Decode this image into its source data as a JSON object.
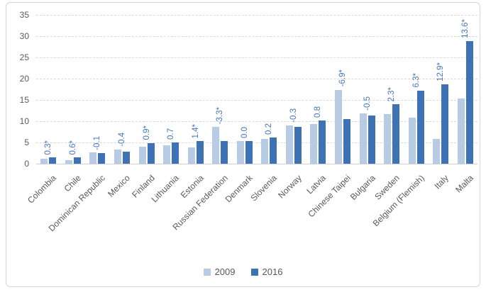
{
  "chart_data": {
    "type": "bar",
    "title": "",
    "xlabel": "",
    "ylabel": "",
    "ylim": [
      0,
      35
    ],
    "yticks": [
      0,
      5,
      10,
      15,
      20,
      25,
      30,
      35
    ],
    "grid": "horizontal-dashed",
    "legend_position": "bottom",
    "categories": [
      "Colombia",
      "Chile",
      "Dominican Republic",
      "Mexico",
      "Finland",
      "Lithuania",
      "Estonia",
      "Russian Federation",
      "Denmark",
      "Slovenia",
      "Norway",
      "Latvia",
      "Chinese Taipei",
      "Bulgaria",
      "Sweden",
      "Belgium (Flemish)",
      "Italy",
      "Malta"
    ],
    "series": [
      {
        "name": "2009",
        "color": "#b7cbe5",
        "values": [
          1.2,
          0.9,
          2.6,
          3.3,
          4.0,
          4.3,
          3.9,
          8.6,
          5.4,
          5.9,
          9.0,
          9.4,
          17.4,
          11.9,
          11.7,
          10.9,
          5.8,
          15.3
        ]
      },
      {
        "name": "2016",
        "color": "#3d72b4",
        "values": [
          1.5,
          1.5,
          2.5,
          2.9,
          4.9,
          5.0,
          5.3,
          5.3,
          5.4,
          6.1,
          8.7,
          10.2,
          10.5,
          11.4,
          14.0,
          17.2,
          18.7,
          28.9
        ]
      }
    ],
    "data_labels": [
      "0.3*",
      "0.6*",
      "-0.1",
      "-0.4",
      "0.9*",
      "0.7",
      "1.4*",
      "-3.3*",
      "0.0",
      "0.2",
      "-0.3",
      "0.8",
      "-6.9*",
      "-0.5",
      "2.3*",
      "6.3*",
      "12.9*",
      "13.6*"
    ],
    "data_label_color": "#4577be"
  },
  "legend": {
    "items": [
      {
        "label": "2009",
        "color": "#b7cbe5"
      },
      {
        "label": "2016",
        "color": "#3d72b4"
      }
    ]
  }
}
